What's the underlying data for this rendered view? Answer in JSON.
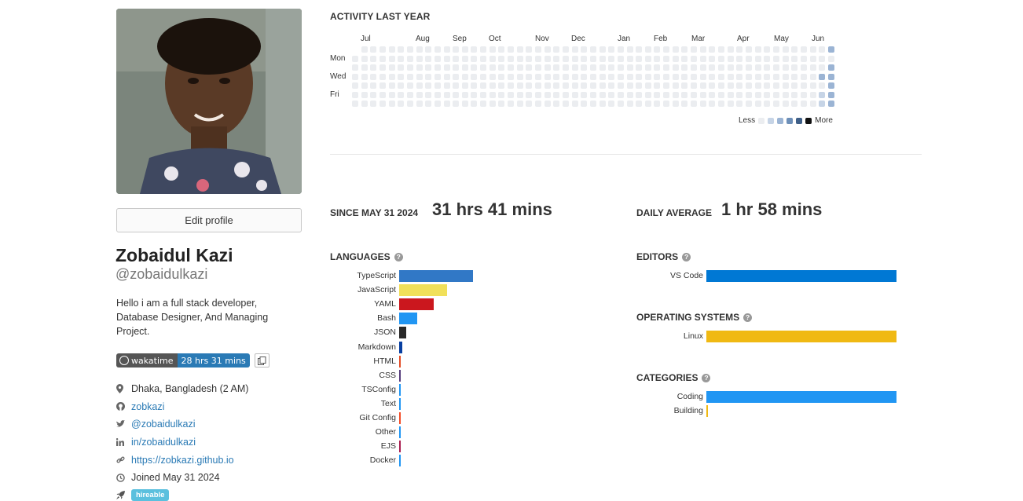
{
  "profile": {
    "edit_label": "Edit profile",
    "full_name": "Zobaidul Kazi",
    "username": "@zobaidulkazi",
    "bio": "Hello i am a full stack developer, Database Designer, And Managing Project.",
    "badge_left": "wakatime",
    "badge_right": "28 hrs 31 mins",
    "location": "Dhaka, Bangladesh (2 AM)",
    "github": "zobkazi",
    "twitter": "@zobaidulkazi",
    "linkedin": "in/zobaidulkazi",
    "website": "https://zobkazi.github.io",
    "joined": "Joined May 31 2024",
    "hireable": "hireable"
  },
  "activity": {
    "title": "ACTIVITY LAST YEAR",
    "months": [
      "Jul",
      "Aug",
      "Sep",
      "Oct",
      "Nov",
      "Dec",
      "Jan",
      "Feb",
      "Mar",
      "Apr",
      "May",
      "Jun"
    ],
    "days": [
      "Mon",
      "Wed",
      "Fri"
    ],
    "legend_less": "Less",
    "legend_more": "More",
    "level_colors": [
      "#ebedf0",
      "#c6d4e6",
      "#9bb4d4",
      "#6d8fb8",
      "#3f5f87",
      "#111111"
    ]
  },
  "stats": {
    "since_label": "SINCE MAY 31 2024",
    "since_value": "31 hrs 41 mins",
    "avg_label": "DAILY AVERAGE",
    "avg_value": "1 hr 58 mins"
  },
  "languages": {
    "title": "LANGUAGES",
    "items": [
      {
        "name": "TypeScript",
        "color": "#3178c6",
        "value": 94
      },
      {
        "name": "JavaScript",
        "color": "#f1e05a",
        "value": 61
      },
      {
        "name": "YAML",
        "color": "#cb171e",
        "value": 44
      },
      {
        "name": "Bash",
        "color": "#2196f3",
        "value": 23
      },
      {
        "name": "JSON",
        "color": "#292929",
        "value": 9
      },
      {
        "name": "Markdown",
        "color": "#083fa1",
        "value": 4
      },
      {
        "name": "HTML",
        "color": "#e34c26",
        "value": 2
      },
      {
        "name": "CSS",
        "color": "#563d7c",
        "value": 2
      },
      {
        "name": "TSConfig",
        "color": "#2196f3",
        "value": 2
      },
      {
        "name": "Text",
        "color": "#2196f3",
        "value": 2
      },
      {
        "name": "Git Config",
        "color": "#f44d27",
        "value": 2
      },
      {
        "name": "Other",
        "color": "#2196f3",
        "value": 1
      },
      {
        "name": "EJS",
        "color": "#a91e50",
        "value": 1
      },
      {
        "name": "Docker",
        "color": "#2196f3",
        "value": 1
      }
    ]
  },
  "editors": {
    "title": "EDITORS",
    "items": [
      {
        "name": "VS Code",
        "color": "#0078d4",
        "value": 100
      }
    ]
  },
  "operating_systems": {
    "title": "OPERATING SYSTEMS",
    "items": [
      {
        "name": "Linux",
        "color": "#f0b913",
        "value": 100
      }
    ]
  },
  "categories": {
    "title": "CATEGORIES",
    "items": [
      {
        "name": "Coding",
        "color": "#2196f3",
        "value": 100
      },
      {
        "name": "Building",
        "color": "#f0b913",
        "value": 0.5
      }
    ]
  }
}
